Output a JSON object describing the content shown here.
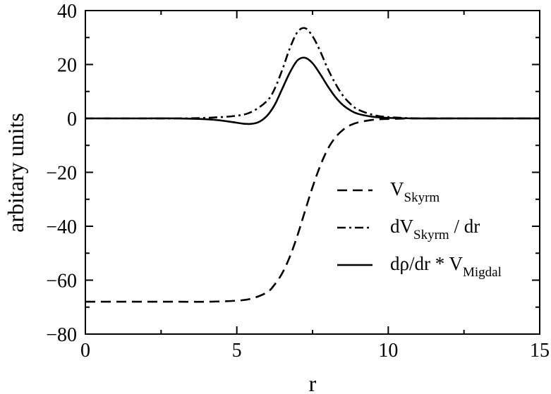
{
  "chart_data": {
    "type": "line",
    "title": "",
    "xlabel": "r",
    "ylabel": "arbitary units",
    "xlim": [
      0,
      15
    ],
    "ylim": [
      -80,
      40
    ],
    "x_ticks": [
      0,
      5,
      10,
      15
    ],
    "x_tick_labels": [
      "0",
      "5",
      "10",
      "15"
    ],
    "y_ticks": [
      40,
      20,
      0,
      -20,
      -40,
      -60,
      -80
    ],
    "y_tick_labels": [
      "40",
      "20",
      "0",
      "−20",
      "−40",
      "−60",
      "−80"
    ],
    "grid": false,
    "legend_position": "center-right",
    "series": [
      {
        "key": "vskyrm",
        "name": "V_Skyrm",
        "legend_main": "V",
        "legend_sub": "Skyrm",
        "legend_tail": "",
        "style": "dashed",
        "x": [
          0,
          1,
          2,
          3,
          4,
          5,
          5.5,
          6,
          6.25,
          6.5,
          6.75,
          7,
          7.25,
          7.5,
          7.75,
          8,
          8.25,
          8.5,
          8.75,
          9,
          9.5,
          10,
          11,
          12,
          13,
          14,
          15
        ],
        "y": [
          -68,
          -68,
          -68,
          -68,
          -68,
          -67.6,
          -66.8,
          -64.5,
          -61.6,
          -57.4,
          -51.3,
          -43.5,
          -34.4,
          -25.5,
          -17.7,
          -11.4,
          -7.1,
          -4.3,
          -2.5,
          -1.5,
          -0.5,
          -0.2,
          0,
          0,
          0,
          0,
          0
        ]
      },
      {
        "key": "dvskyrm",
        "name": "dV_Skyrm / dr",
        "legend_main": "dV",
        "legend_sub": "Skyrm",
        "legend_tail": " / dr",
        "style": "dashdot",
        "x": [
          0,
          1,
          2,
          3,
          4,
          5,
          5.5,
          6,
          6.25,
          6.5,
          6.75,
          7,
          7.25,
          7.5,
          7.75,
          8,
          8.25,
          8.5,
          8.75,
          9,
          9.5,
          10,
          11,
          12,
          13,
          14,
          15
        ],
        "y": [
          0,
          0,
          0,
          0,
          0.2,
          1.0,
          2.5,
          6.5,
          11,
          18,
          26,
          32,
          33.5,
          30.5,
          25,
          18.5,
          13,
          8.5,
          5.4,
          3.3,
          1.3,
          0.5,
          0,
          0,
          0,
          0,
          0
        ]
      },
      {
        "key": "drho",
        "name": "dρ/dr * V_Migdal",
        "legend_main": "dρ/dr * V",
        "legend_sub": "Migdal",
        "legend_tail": "",
        "style": "solid",
        "x": [
          0,
          1,
          2,
          3,
          4,
          4.5,
          5,
          5.25,
          5.5,
          5.75,
          6,
          6.25,
          6.5,
          6.75,
          7,
          7.25,
          7.5,
          7.75,
          8,
          8.25,
          8.5,
          8.75,
          9,
          9.5,
          10,
          11,
          12,
          13,
          14,
          15
        ],
        "y": [
          0,
          0,
          0,
          0,
          -0.3,
          -0.8,
          -1.6,
          -2.0,
          -2.0,
          -1.2,
          1.0,
          5.0,
          11,
          17,
          21.5,
          22.5,
          20.5,
          16.5,
          12,
          8,
          5,
          3,
          1.7,
          0.6,
          0.2,
          0,
          0,
          0,
          0,
          0
        ]
      }
    ]
  }
}
